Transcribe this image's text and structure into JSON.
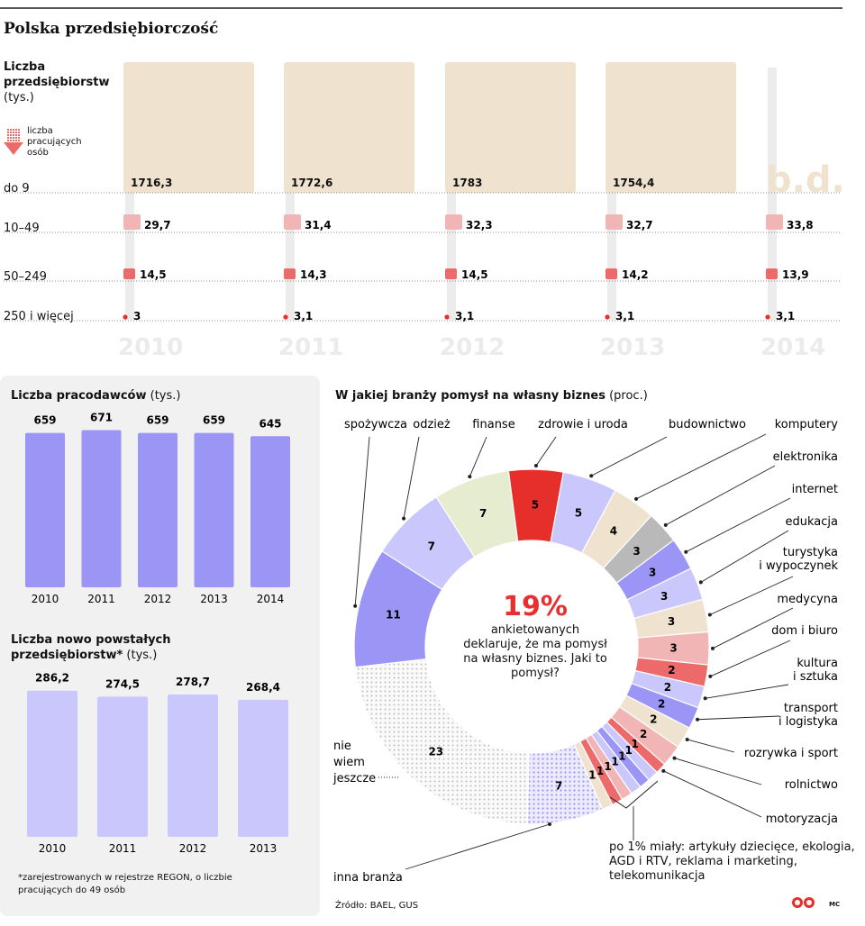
{
  "title": "Polska przedsiębiorczość",
  "enterprises": {
    "title": "Liczba przedsiębiorstw",
    "unit": "(tys.)",
    "employees_note": "liczba pracujących osób",
    "years": [
      "2010",
      "2011",
      "2012",
      "2013",
      "2014"
    ],
    "rows": [
      {
        "label": "do 9",
        "values": [
          "1716,3",
          "1772,6",
          "1783",
          "1754,4",
          "b.d."
        ]
      },
      {
        "label": "10–49",
        "values": [
          "29,7",
          "31,4",
          "32,3",
          "32,7",
          "33,8"
        ]
      },
      {
        "label": "50–249",
        "values": [
          "14,5",
          "14,3",
          "14,5",
          "14,2",
          "13,9"
        ]
      },
      {
        "label": "250 i więcej",
        "values": [
          "3",
          "3,1",
          "3,1",
          "3,1",
          "3,1"
        ]
      }
    ]
  },
  "employers": {
    "title": "Liczba pracodawców",
    "unit": "(tys.)",
    "label": "Liczba pracodawców (tys.)"
  },
  "new_enterprises": {
    "title": "Liczba nowo powstałych przedsiębiorstw*",
    "unit": "(tys.)",
    "label": "Liczba nowo powstałych przedsiębiorstw* (tys.)",
    "footnote": "*zarejestrowanych w rejestrze REGON, o liczbie pracujących do 49 osób"
  },
  "pie": {
    "title": "W jakiej branży pomysł na własny biznes",
    "unit": "(proc.)",
    "label": "W jakiej branży pomysł na własny biznes (proc.)",
    "center_percent": "19%",
    "center_text": "ankietowanych deklaruje, że ma pomysł na własny biznes. Jaki to pomysł?",
    "others_note": "po 1% miały: artykuły dziecięce, ekologia, AGD i RTV, reklama i marketing, telekomunikacja"
  },
  "source": "Źródło: BAEL, GUS",
  "initials": "MC",
  "colors": {
    "purple": "#9b95f5",
    "lavender": "#c9c7fb",
    "beige": "#efe3cf",
    "olive_light": "#e6ecd0",
    "red": "#e62f2a",
    "gray": "#b9b9b9",
    "pink": "#f2b5b5",
    "pink_dark": "#ec6a6a"
  },
  "chart_data": [
    {
      "type": "bar",
      "title": "Liczba pracodawców (tys.)",
      "categories": [
        "2010",
        "2011",
        "2012",
        "2013",
        "2014"
      ],
      "values": [
        659,
        671,
        659,
        659,
        645
      ],
      "value_labels": [
        "659",
        "671",
        "659",
        "659",
        "645"
      ],
      "ylim": [
        0,
        700
      ]
    },
    {
      "type": "bar",
      "title": "Liczba nowo powstałych przedsiębiorstw* (tys.)",
      "categories": [
        "2010",
        "2011",
        "2012",
        "2013"
      ],
      "values": [
        286.2,
        274.5,
        278.7,
        268.4
      ],
      "value_labels": [
        "286,2",
        "274,5",
        "278,7",
        "268,4"
      ],
      "ylim": [
        0,
        300
      ]
    },
    {
      "type": "pie",
      "title": "W jakiej branży pomysł na własny biznes (proc.)",
      "slices": [
        {
          "label": "finanse",
          "value": 5,
          "color": "#e62f2a"
        },
        {
          "label": "zdrowie i uroda",
          "value": 5,
          "color": "#c9c7fb"
        },
        {
          "label": "budownictwo",
          "value": 4,
          "color": "#efe3cf"
        },
        {
          "label": "komputery",
          "value": 3,
          "color": "#b9b9b9"
        },
        {
          "label": "elektronika",
          "value": 3,
          "color": "#9b95f5"
        },
        {
          "label": "internet",
          "value": 3,
          "color": "#c9c7fb"
        },
        {
          "label": "edukacja",
          "value": 3,
          "color": "#efe3cf"
        },
        {
          "label": "turystyka i wypoczynek",
          "value": 3,
          "color": "#f2b5b5"
        },
        {
          "label": "medycyna",
          "value": 2,
          "color": "#ec6a6a"
        },
        {
          "label": "dom i biuro",
          "value": 2,
          "color": "#c9c7fb"
        },
        {
          "label": "kultura i sztuka",
          "value": 2,
          "color": "#9b95f5"
        },
        {
          "label": "transport i logistyka",
          "value": 2,
          "color": "#efe3cf"
        },
        {
          "label": "rozrywka i sport",
          "value": 2,
          "color": "#f2b5b5"
        },
        {
          "label": "rolnictwo",
          "value": 1,
          "color": "#ec6a6a"
        },
        {
          "label": "motoryzacja",
          "value": 1,
          "color": "#c9c7fb"
        },
        {
          "label": "po 1%",
          "value": 1,
          "color": "#9b95f5"
        },
        {
          "label": "po 1%",
          "value": 1,
          "color": "#c9c7fb"
        },
        {
          "label": "po 1%",
          "value": 1,
          "color": "#f2b5b5"
        },
        {
          "label": "po 1%",
          "value": 1,
          "color": "#ec6a6a"
        },
        {
          "label": "po 1%",
          "value": 1,
          "color": "#efe3cf"
        },
        {
          "label": "inna branża",
          "value": 7,
          "color": "#c9c7fb",
          "pattern": "dots"
        },
        {
          "label": "nie wiem jeszcze",
          "value": 23,
          "color": "#d5d5d5",
          "pattern": "dots"
        },
        {
          "label": "spożywcza",
          "value": 11,
          "color": "#9b95f5"
        },
        {
          "label": "odzież",
          "value": 7,
          "color": "#c9c7fb"
        },
        {
          "label": "finanse-olive",
          "value": 7,
          "color": "#e6ecd0"
        }
      ]
    }
  ]
}
